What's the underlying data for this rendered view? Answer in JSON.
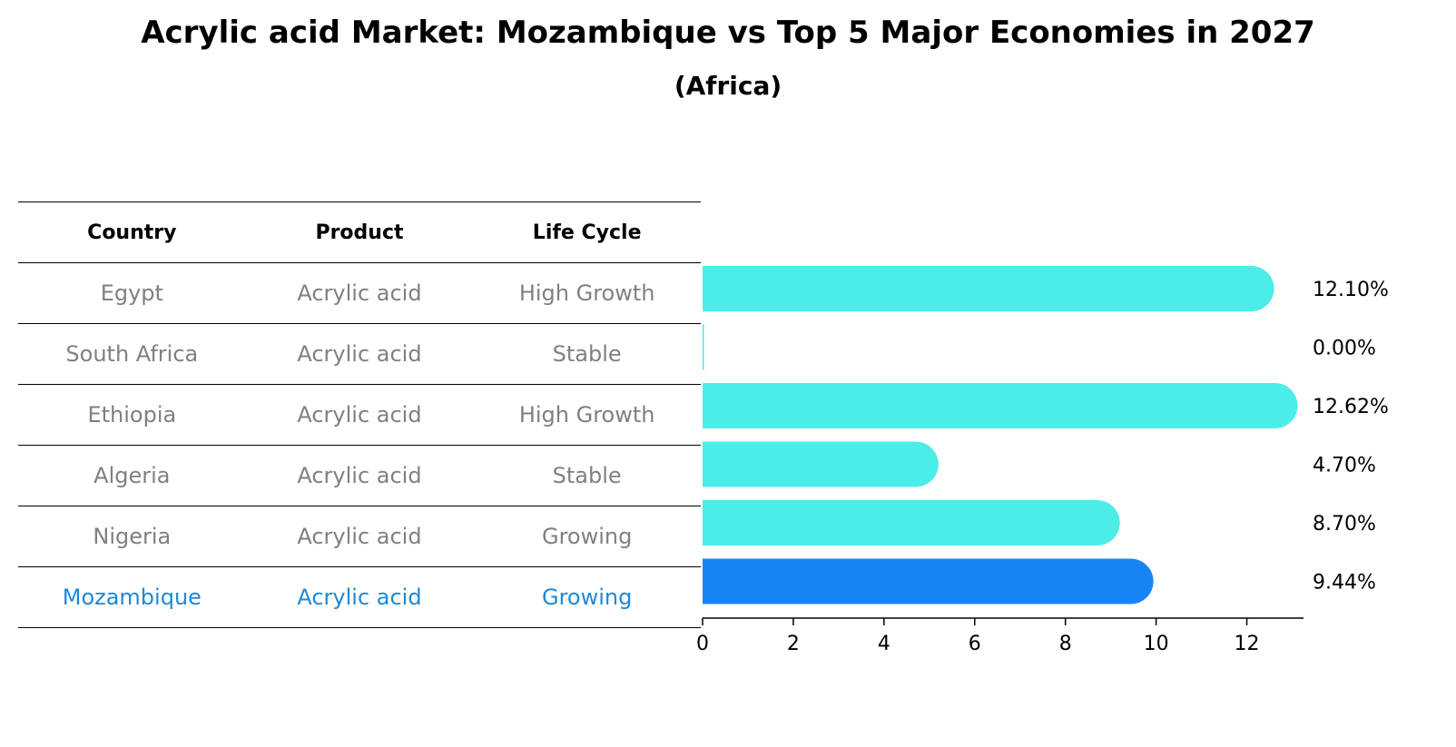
{
  "title": "Acrylic acid Market: Mozambique vs Top 5 Major Economies in 2027",
  "subtitle": "(Africa)",
  "table": {
    "headers": [
      "Country",
      "Product",
      "Life Cycle"
    ],
    "rows": [
      {
        "country": "Egypt",
        "product": "Acrylic acid",
        "life_cycle": "High Growth"
      },
      {
        "country": "South Africa",
        "product": "Acrylic acid",
        "life_cycle": "Stable"
      },
      {
        "country": "Ethiopia",
        "product": "Acrylic acid",
        "life_cycle": "High Growth"
      },
      {
        "country": "Algeria",
        "product": "Acrylic acid",
        "life_cycle": "Stable"
      },
      {
        "country": "Nigeria",
        "product": "Acrylic acid",
        "life_cycle": "Growing"
      },
      {
        "country": "Mozambique",
        "product": "Acrylic acid",
        "life_cycle": "Growing"
      }
    ]
  },
  "chart_data": {
    "type": "bar",
    "orientation": "horizontal",
    "categories": [
      "Egypt",
      "South Africa",
      "Ethiopia",
      "Algeria",
      "Nigeria",
      "Mozambique"
    ],
    "values": [
      12.1,
      0.0,
      12.62,
      4.7,
      8.7,
      9.44
    ],
    "value_labels": [
      "12.10%",
      "0.00%",
      "12.62%",
      "4.70%",
      "8.70%",
      "9.44%"
    ],
    "highlight": "Mozambique",
    "xlim": [
      0,
      13.25
    ],
    "xticks": [
      0,
      2,
      4,
      6,
      8,
      10,
      12
    ],
    "colors": {
      "default": "#4cede9",
      "highlight": "#1785f5"
    },
    "grid": false
  }
}
